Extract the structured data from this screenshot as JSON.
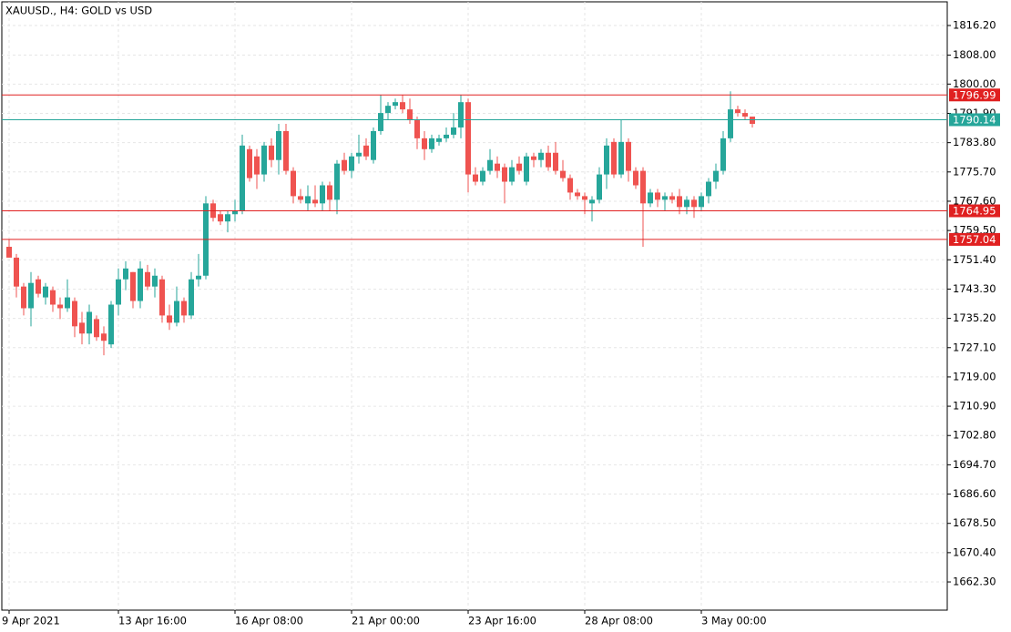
{
  "chart_data": {
    "type": "candlestick",
    "title": "XAUUSD., H4:  GOLD vs USD",
    "categories": [
      "9 Apr 2021",
      null,
      null,
      null,
      null,
      null,
      null,
      null,
      null,
      null,
      null,
      null,
      null,
      null,
      null,
      "13 Apr 16:00",
      null,
      null,
      null,
      null,
      null,
      null,
      null,
      null,
      null,
      null,
      null,
      null,
      null,
      null,
      null,
      "16 Apr 08:00",
      null,
      null,
      null,
      null,
      null,
      null,
      null,
      null,
      null,
      null,
      null,
      null,
      null,
      null,
      null,
      "21 Apr 00:00",
      null,
      null,
      null,
      null,
      null,
      null,
      null,
      null,
      null,
      null,
      null,
      null,
      null,
      null,
      null,
      "23 Apr 16:00",
      null,
      null,
      null,
      null,
      null,
      null,
      null,
      null,
      null,
      null,
      null,
      null,
      null,
      null,
      null,
      "28 Apr 08:00",
      null,
      null,
      null,
      null,
      null,
      null,
      null,
      null,
      null,
      null,
      null,
      null,
      null,
      null,
      null,
      "3 May 00:00",
      null,
      null,
      null,
      null,
      null,
      null,
      null
    ],
    "series": [
      {
        "up_color": "#26a69a",
        "down_color": "#ef5350",
        "open": [
          1755,
          1752,
          1744,
          1738,
          1746,
          1741,
          1743,
          1739,
          1738,
          1740,
          1734,
          1731,
          1735,
          1731,
          1728,
          1739,
          1746,
          1748,
          1740,
          1748,
          1744,
          1746,
          1736,
          1734,
          1740,
          1736,
          1746,
          1747,
          1767,
          1764,
          1762,
          1764,
          1765,
          1782,
          1780,
          1775,
          1783,
          1779,
          1787,
          1776,
          1769,
          1767,
          1768,
          1767,
          1772,
          1768,
          1779,
          1776,
          1780,
          1783,
          1779,
          1787,
          1792,
          1794,
          1795,
          1793,
          1790,
          1785,
          1782,
          1784,
          1785,
          1786,
          1788,
          1795,
          1775,
          1773,
          1776,
          1778,
          1777,
          1773,
          1778,
          1773,
          1780,
          1779,
          1781,
          1781,
          1776,
          1774,
          1770,
          1769,
          1767,
          1768,
          1775,
          1784,
          1775,
          1784,
          1776,
          1776,
          1767,
          1770,
          1768,
          1769,
          1769,
          1766,
          1768,
          1766,
          1769,
          1773,
          1776,
          1785,
          1793,
          1792,
          1791
        ],
        "high": [
          1757,
          1753,
          1745,
          1748,
          1747,
          1745,
          1744,
          1741,
          1746,
          1741,
          1737,
          1739,
          1736,
          1733,
          1740,
          1749,
          1751,
          1748,
          1751,
          1750,
          1749,
          1747,
          1739,
          1744,
          1741,
          1748,
          1753,
          1769,
          1768,
          1765,
          1765,
          1768,
          1786,
          1783,
          1782,
          1784,
          1785,
          1789,
          1789,
          1777,
          1771,
          1772,
          1772,
          1773,
          1773,
          1779,
          1781,
          1781,
          1786,
          1785,
          1788,
          1797,
          1795,
          1796,
          1797,
          1796,
          1791,
          1787,
          1786,
          1786,
          1788,
          1792,
          1797,
          1796,
          1777,
          1777,
          1782,
          1780,
          1778,
          1779,
          1780,
          1781,
          1781,
          1782,
          1783,
          1784,
          1779,
          1775,
          1771,
          1770,
          1769,
          1777,
          1785,
          1785,
          1790,
          1785,
          1777,
          1777,
          1771,
          1771,
          1770,
          1770,
          1771,
          1769,
          1769,
          1770,
          1774,
          1778,
          1787,
          1798,
          1794,
          1793,
          1791
        ],
        "low": [
          1752,
          1741,
          1736,
          1733,
          1741,
          1739,
          1737,
          1735,
          1737,
          1730,
          1728,
          1728,
          1729,
          1725,
          1727,
          1736,
          1743,
          1738,
          1738,
          1743,
          1741,
          1734,
          1732,
          1733,
          1734,
          1735,
          1744,
          1746,
          1762,
          1761,
          1759,
          1762,
          1764,
          1773,
          1771,
          1773,
          1777,
          1775,
          1775,
          1767,
          1767,
          1765,
          1766,
          1765,
          1765,
          1764,
          1775,
          1774,
          1778,
          1779,
          1778,
          1786,
          1790,
          1793,
          1792,
          1789,
          1782,
          1779,
          1781,
          1783,
          1784,
          1785,
          1785,
          1770,
          1772,
          1772,
          1775,
          1774,
          1767,
          1772,
          1775,
          1772,
          1777,
          1777,
          1776,
          1775,
          1773,
          1768,
          1768,
          1764,
          1762,
          1767,
          1771,
          1774,
          1774,
          1773,
          1771,
          1755,
          1766,
          1766,
          1765,
          1767,
          1764,
          1764,
          1763,
          1765,
          1767,
          1771,
          1775,
          1784,
          1791,
          1790,
          1788
        ],
        "close": [
          1752,
          1744,
          1738,
          1745,
          1742,
          1744,
          1739,
          1738,
          1741,
          1733,
          1731,
          1737,
          1730,
          1729,
          1739,
          1746,
          1749,
          1740,
          1749,
          1744,
          1747,
          1736,
          1734,
          1740,
          1736,
          1746,
          1747,
          1767,
          1763,
          1762,
          1764,
          1765,
          1783,
          1774,
          1775,
          1783,
          1779,
          1787,
          1776,
          1769,
          1768,
          1769,
          1767,
          1772,
          1768,
          1778,
          1776,
          1780,
          1781,
          1780,
          1787,
          1792,
          1794,
          1795,
          1793,
          1790,
          1785,
          1782,
          1785,
          1785,
          1786,
          1788,
          1795,
          1775,
          1773,
          1776,
          1779,
          1776,
          1773,
          1777,
          1776,
          1780,
          1779,
          1781,
          1777,
          1776,
          1774,
          1770,
          1769,
          1768,
          1768,
          1775,
          1783,
          1775,
          1784,
          1776,
          1772,
          1767,
          1770,
          1768,
          1769,
          1768,
          1766,
          1768,
          1766,
          1769,
          1773,
          1776,
          1785,
          1793,
          1792,
          1791,
          1789
        ]
      }
    ],
    "levels": [
      {
        "value": 1796.99,
        "color": "#e02020"
      },
      {
        "value": 1790.14,
        "color": "#26a69a"
      },
      {
        "value": 1764.95,
        "color": "#e02020"
      },
      {
        "value": 1757.04,
        "color": "#e02020"
      }
    ],
    "ylim": [
      1654.5,
      1822.75
    ],
    "yticks": [
      {
        "value": 1816.2,
        "label": "1816.20"
      },
      {
        "value": 1808,
        "label": "1808.00"
      },
      {
        "value": 1800,
        "label": "1800.00"
      },
      {
        "value": 1791.9,
        "label": "1791.90"
      },
      {
        "value": 1783.8,
        "label": "1783.80"
      },
      {
        "value": 1775.7,
        "label": "1775.70"
      },
      {
        "value": 1767.6,
        "label": "1767.60"
      },
      {
        "value": 1759.5,
        "label": "1759.50"
      },
      {
        "value": 1751.4,
        "label": "1751.40"
      },
      {
        "value": 1743.3,
        "label": "1743.30"
      },
      {
        "value": 1735.2,
        "label": "1735.20"
      },
      {
        "value": 1727.1,
        "label": "1727.10"
      },
      {
        "value": 1719,
        "label": "1719.00"
      },
      {
        "value": 1710.9,
        "label": "1710.90"
      },
      {
        "value": 1702.8,
        "label": "1702.80"
      },
      {
        "value": 1694.7,
        "label": "1694.70"
      },
      {
        "value": 1686.6,
        "label": "1686.60"
      },
      {
        "value": 1678.5,
        "label": "1678.50"
      },
      {
        "value": 1670.4,
        "label": "1670.40"
      },
      {
        "value": 1662.3,
        "label": "1662.30"
      }
    ],
    "grid": true
  }
}
